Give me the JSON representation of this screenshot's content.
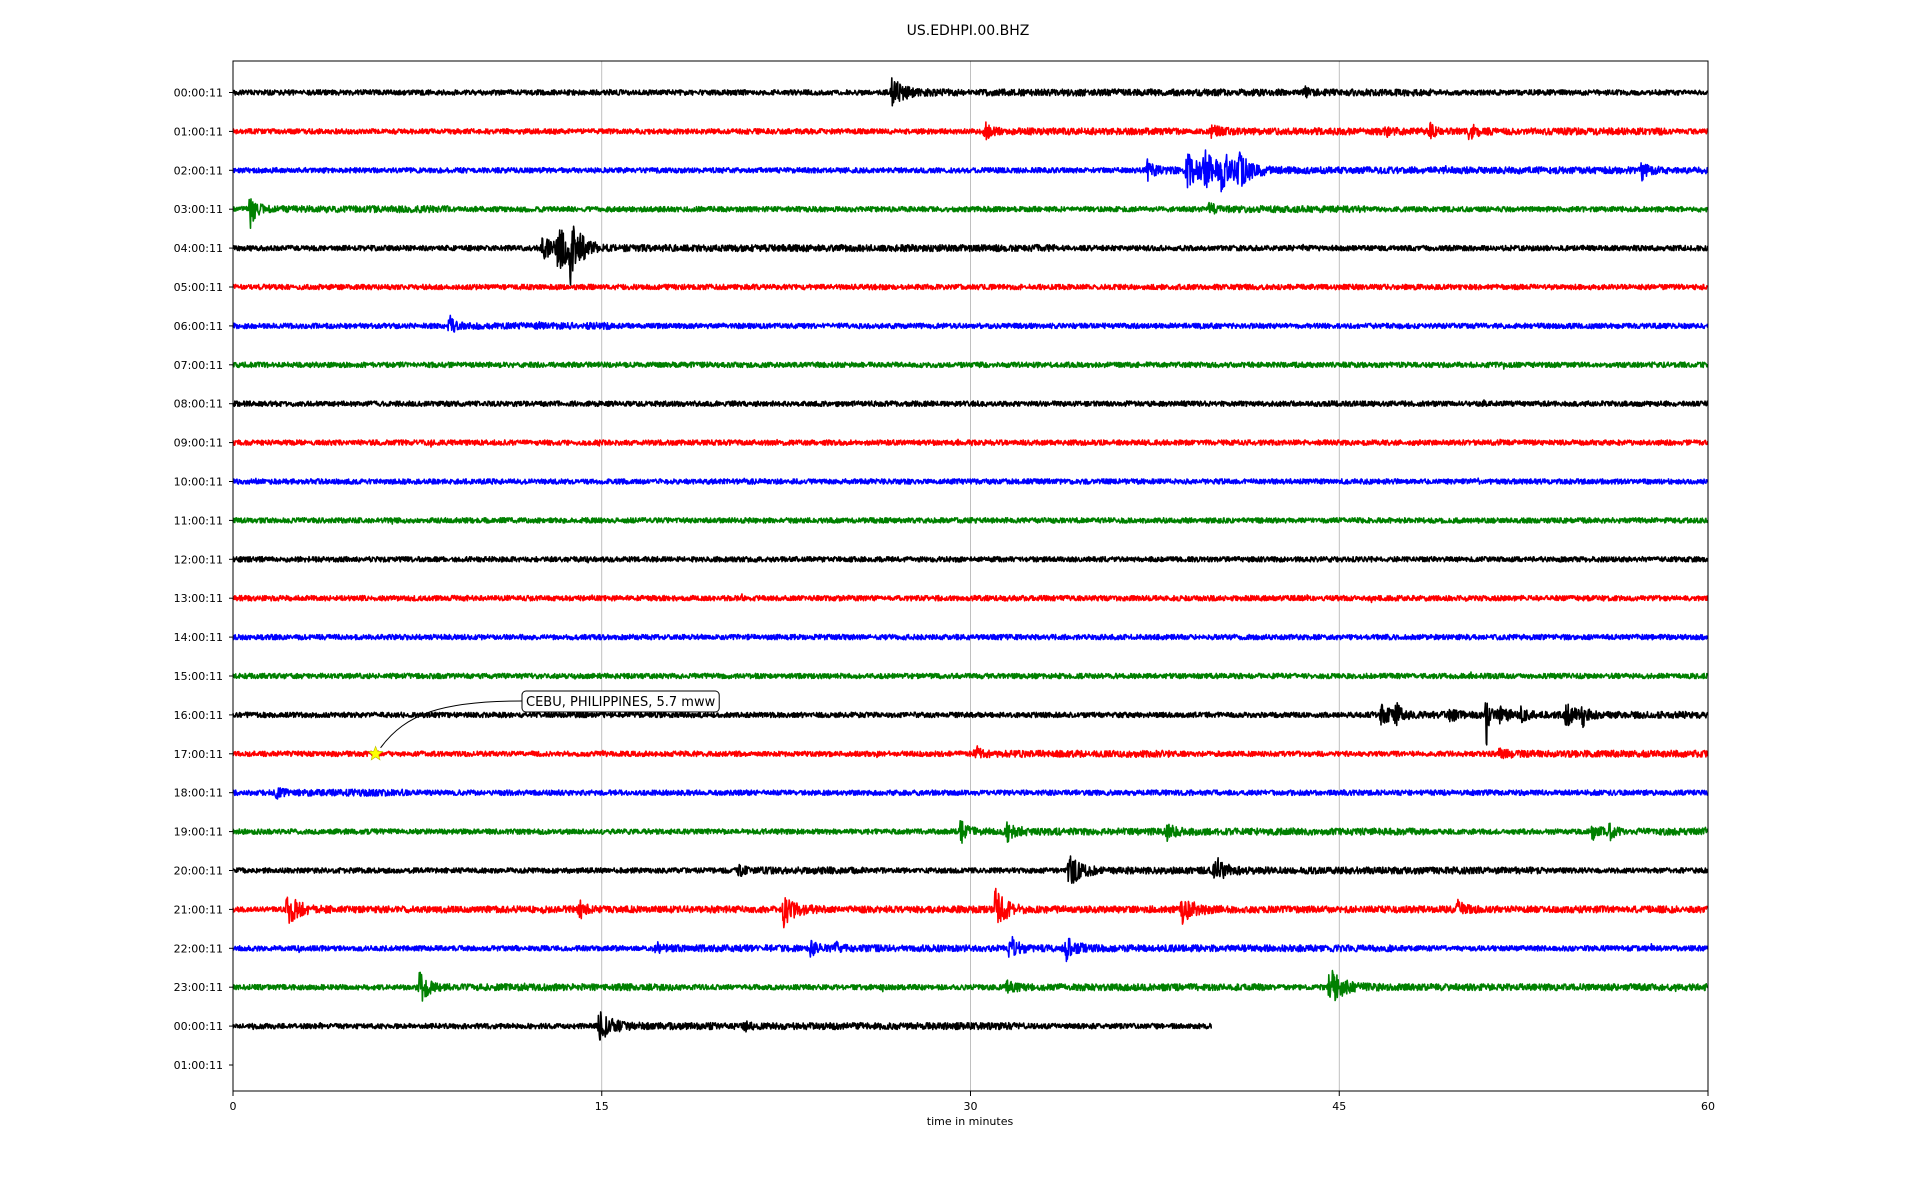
{
  "chart_data": {
    "type": "line",
    "title": "US.EDHPI.00.BHZ",
    "xlabel": "time in minutes",
    "ylabel": "",
    "xlim": [
      0,
      60
    ],
    "xticks": [
      0,
      15,
      30,
      45,
      60
    ],
    "xtick_labels": [
      "0",
      "15",
      "30",
      "45",
      "60"
    ],
    "grid": "vertical lines at x ticks",
    "colors": [
      "#000000",
      "#ff0000",
      "#0000ff",
      "#008000"
    ],
    "row_labels": [
      "00:00:11",
      "01:00:11",
      "02:00:11",
      "03:00:11",
      "04:00:11",
      "05:00:11",
      "06:00:11",
      "07:00:11",
      "08:00:11",
      "09:00:11",
      "10:00:11",
      "11:00:11",
      "12:00:11",
      "13:00:11",
      "14:00:11",
      "15:00:11",
      "16:00:11",
      "17:00:11",
      "18:00:11",
      "19:00:11",
      "20:00:11",
      "21:00:11",
      "22:00:11",
      "23:00:11",
      "00:00:11",
      "01:00:11"
    ],
    "traces": [
      {
        "row": 0,
        "end": 60,
        "bursts": [
          [
            26.8,
            4,
            1.2
          ],
          [
            43.6,
            1.2,
            0.4
          ]
        ]
      },
      {
        "row": 1,
        "end": 60,
        "bursts": [
          [
            30.6,
            2.2,
            0.6
          ],
          [
            39.8,
            1.5,
            0.8
          ],
          [
            46.9,
            1.8,
            0.5
          ],
          [
            48.7,
            2.2,
            0.5
          ],
          [
            50.3,
            2.8,
            0.6
          ]
        ]
      },
      {
        "row": 2,
        "end": 60,
        "bursts": [
          [
            37.2,
            3,
            0.6
          ],
          [
            38.8,
            5,
            1.8
          ],
          [
            39.5,
            4,
            1.5
          ],
          [
            40.2,
            4,
            1.5
          ],
          [
            40.9,
            3.5,
            1.2
          ],
          [
            57.3,
            2.2,
            0.7
          ]
        ]
      },
      {
        "row": 3,
        "end": 60,
        "bursts": [
          [
            0.7,
            5,
            0.6
          ],
          [
            39.7,
            2,
            0.5
          ]
        ]
      },
      {
        "row": 4,
        "end": 60,
        "bursts": [
          [
            12.6,
            3,
            1.2
          ],
          [
            13.2,
            6,
            1.5
          ],
          [
            13.7,
            9,
            0.5
          ],
          [
            14.1,
            3,
            0.7
          ]
        ]
      },
      {
        "row": 5,
        "end": 60,
        "bursts": []
      },
      {
        "row": 6,
        "end": 60,
        "bursts": [
          [
            8.8,
            2.8,
            0.5
          ]
        ]
      },
      {
        "row": 7,
        "end": 60,
        "bursts": []
      },
      {
        "row": 8,
        "end": 60,
        "bursts": []
      },
      {
        "row": 9,
        "end": 60,
        "bursts": []
      },
      {
        "row": 10,
        "end": 60,
        "bursts": []
      },
      {
        "row": 11,
        "end": 60,
        "bursts": []
      },
      {
        "row": 12,
        "end": 60,
        "bursts": []
      },
      {
        "row": 13,
        "end": 60,
        "bursts": []
      },
      {
        "row": 14,
        "end": 60,
        "bursts": []
      },
      {
        "row": 15,
        "end": 60,
        "bursts": []
      },
      {
        "row": 16,
        "end": 60,
        "bursts": [
          [
            46.7,
            3,
            0.9
          ],
          [
            47.3,
            3,
            0.6
          ],
          [
            49.5,
            1.8,
            0.8
          ],
          [
            51.0,
            12,
            0.25
          ],
          [
            51.5,
            2.5,
            0.9
          ],
          [
            52.4,
            1.8,
            0.6
          ],
          [
            54.2,
            3.5,
            0.9
          ],
          [
            54.9,
            2.5,
            0.6
          ]
        ]
      },
      {
        "row": 17,
        "end": 60,
        "bursts": [
          [
            30.2,
            2.2,
            0.6
          ],
          [
            51.5,
            1.4,
            0.8
          ]
        ]
      },
      {
        "row": 18,
        "end": 60,
        "bursts": [
          [
            1.8,
            1.5,
            0.4
          ]
        ]
      },
      {
        "row": 19,
        "end": 60,
        "bursts": [
          [
            29.6,
            3,
            0.7
          ],
          [
            31.5,
            2.8,
            0.9
          ],
          [
            38.0,
            2.2,
            0.8
          ],
          [
            55.3,
            1.8,
            0.8
          ],
          [
            56.0,
            2.8,
            0.5
          ]
        ]
      },
      {
        "row": 20,
        "end": 60,
        "bursts": [
          [
            20.6,
            1.5,
            0.4
          ],
          [
            34.0,
            4.5,
            1.2
          ],
          [
            39.9,
            4.5,
            1.0
          ]
        ]
      },
      {
        "row": 21,
        "end": 60,
        "bursts": [
          [
            2.2,
            4.5,
            1.3
          ],
          [
            14.1,
            2.5,
            0.6
          ],
          [
            22.4,
            4.5,
            1.2
          ],
          [
            31.0,
            5.5,
            1.2
          ],
          [
            38.6,
            3.5,
            1.4
          ],
          [
            49.8,
            2.2,
            0.8
          ]
        ]
      },
      {
        "row": 22,
        "end": 60,
        "bursts": [
          [
            17.2,
            1.8,
            0.6
          ],
          [
            23.5,
            2,
            0.6
          ],
          [
            24.5,
            1.5,
            0.5
          ],
          [
            31.6,
            3.5,
            0.8
          ],
          [
            33.9,
            3.2,
            1.0
          ]
        ]
      },
      {
        "row": 23,
        "end": 60,
        "bursts": [
          [
            7.6,
            4.5,
            0.8
          ],
          [
            31.5,
            1.8,
            0.8
          ],
          [
            44.6,
            5,
            1.4
          ]
        ]
      },
      {
        "row": 24,
        "end": 39.8,
        "bursts": [
          [
            14.9,
            4,
            1.3
          ],
          [
            20.8,
            1.2,
            0.5
          ]
        ]
      }
    ],
    "annotation": {
      "text": "CEBU, PHILIPPINES, 5.7 mww",
      "marker_row": 17,
      "marker_x": 5.8,
      "marker_color": "#ffff00"
    }
  }
}
